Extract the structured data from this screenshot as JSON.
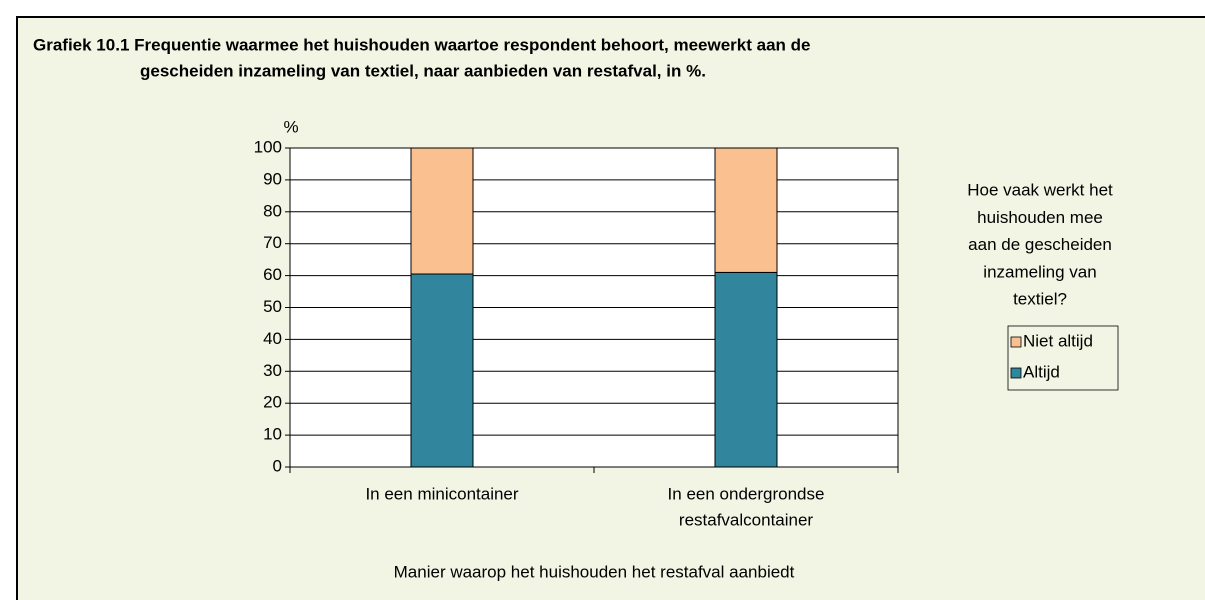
{
  "chart_data": {
    "type": "stacked_bar",
    "title": [
      "Grafiek 10.1  Frequentie waarmee het huishouden waartoe respondent behoort, meewerkt aan de",
      "gescheiden inzameling van textiel, naar aanbieden van restafval, in %."
    ],
    "y_label": "%",
    "x_label": "Manier waarop het huishouden het restafval aanbiedt",
    "legend_title": [
      "Hoe vaak werkt het",
      "huishouden mee",
      "aan de gescheiden",
      "inzameling van",
      "textiel?"
    ],
    "categories": [
      [
        "In een minicontainer"
      ],
      [
        "In een ondergrondse",
        "restafvalcontainer"
      ]
    ],
    "series": [
      {
        "name": "Altijd",
        "color": "#31859c",
        "values": [
          60.5,
          61
        ]
      },
      {
        "name": "Niet altijd",
        "color": "#fac090",
        "values": [
          39.5,
          39
        ]
      }
    ],
    "ylim": [
      0,
      100
    ],
    "yticks": [
      0,
      10,
      20,
      30,
      40,
      50,
      60,
      70,
      80,
      90,
      100
    ],
    "grid": true,
    "legend": "right"
  }
}
